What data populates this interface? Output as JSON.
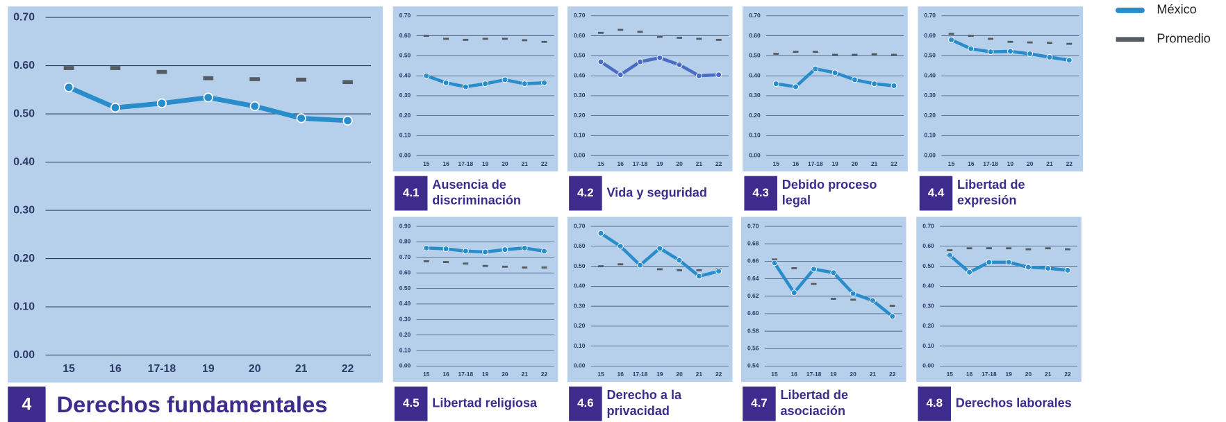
{
  "chart_data": [
    {
      "type": "line",
      "number": "4",
      "title": [
        "Derechos fundamentales"
      ],
      "categories": [
        "15",
        "16",
        "17-18",
        "19",
        "20",
        "21",
        "22"
      ],
      "ylim": [
        0,
        0.7
      ],
      "yticks": [
        {
          "value": 0,
          "label": "0.00"
        },
        {
          "value": 0.1,
          "label": "0.10"
        },
        {
          "value": 0.2,
          "label": "0.20"
        },
        {
          "value": 0.3,
          "label": "0.30"
        },
        {
          "value": 0.4,
          "label": "0.40"
        },
        {
          "value": 0.5,
          "label": "0.50"
        },
        {
          "value": 0.6,
          "label": "0.60"
        },
        {
          "value": 0.7,
          "label": "0.70"
        }
      ],
      "grid": true,
      "series": [
        {
          "name": "México",
          "color": "#2a8dcb",
          "style": "line",
          "values": [
            0.555,
            0.513,
            0.522,
            0.534,
            0.516,
            0.491,
            0.486
          ]
        },
        {
          "name": "Promedio",
          "color": "#555b63",
          "style": "dash",
          "values": [
            0.595,
            0.595,
            0.587,
            0.574,
            0.572,
            0.571,
            0.566
          ]
        }
      ]
    },
    {
      "type": "line",
      "number": "4.1",
      "title": [
        "Ausencia de",
        "discriminación"
      ],
      "categories": [
        "15",
        "16",
        "17-18",
        "19",
        "20",
        "21",
        "22"
      ],
      "ylim": [
        0,
        0.7
      ],
      "yticks": [
        {
          "value": 0,
          "label": "0.00"
        },
        {
          "value": 0.1,
          "label": "0.10"
        },
        {
          "value": 0.2,
          "label": "0.20"
        },
        {
          "value": 0.3,
          "label": "0.30"
        },
        {
          "value": 0.4,
          "label": "0.40"
        },
        {
          "value": 0.5,
          "label": "0.50"
        },
        {
          "value": 0.6,
          "label": "0.60"
        },
        {
          "value": 0.7,
          "label": "0.70"
        }
      ],
      "grid": true,
      "series": [
        {
          "name": "México",
          "color": "#2a8dcb",
          "style": "line",
          "values": [
            0.4,
            0.365,
            0.345,
            0.36,
            0.38,
            0.36,
            0.365
          ]
        },
        {
          "name": "Promedio",
          "color": "#555b63",
          "style": "dash",
          "values": [
            0.6,
            0.585,
            0.58,
            0.585,
            0.585,
            0.578,
            0.57
          ]
        }
      ]
    },
    {
      "type": "line",
      "number": "4.2",
      "title": [
        "Vida y seguridad"
      ],
      "categories": [
        "15",
        "16",
        "17-18",
        "19",
        "20",
        "21",
        "22"
      ],
      "ylim": [
        0,
        0.7
      ],
      "yticks": [
        {
          "value": 0,
          "label": "0.00"
        },
        {
          "value": 0.1,
          "label": "0.10"
        },
        {
          "value": 0.2,
          "label": "0.20"
        },
        {
          "value": 0.3,
          "label": "0.30"
        },
        {
          "value": 0.4,
          "label": "0.40"
        },
        {
          "value": 0.5,
          "label": "0.50"
        },
        {
          "value": 0.6,
          "label": "0.60"
        },
        {
          "value": 0.7,
          "label": "0.70"
        }
      ],
      "grid": true,
      "series": [
        {
          "name": "México",
          "color": "#4a6cc2",
          "style": "line",
          "values": [
            0.47,
            0.405,
            0.47,
            0.49,
            0.455,
            0.4,
            0.405
          ]
        },
        {
          "name": "Promedio",
          "color": "#555b63",
          "style": "dash",
          "values": [
            0.615,
            0.63,
            0.62,
            0.595,
            0.59,
            0.585,
            0.58
          ]
        }
      ]
    },
    {
      "type": "line",
      "number": "4.3",
      "title": [
        "Debido proceso",
        "legal"
      ],
      "categories": [
        "15",
        "16",
        "17-18",
        "19",
        "20",
        "21",
        "22"
      ],
      "ylim": [
        0,
        0.7
      ],
      "yticks": [
        {
          "value": 0,
          "label": "0.00"
        },
        {
          "value": 0.1,
          "label": "0.10"
        },
        {
          "value": 0.2,
          "label": "0.20"
        },
        {
          "value": 0.3,
          "label": "0.30"
        },
        {
          "value": 0.4,
          "label": "0.40"
        },
        {
          "value": 0.5,
          "label": "0.50"
        },
        {
          "value": 0.6,
          "label": "0.60"
        },
        {
          "value": 0.7,
          "label": "0.70"
        }
      ],
      "grid": true,
      "series": [
        {
          "name": "México",
          "color": "#2a8dcb",
          "style": "line",
          "values": [
            0.36,
            0.345,
            0.435,
            0.415,
            0.38,
            0.36,
            0.35
          ]
        },
        {
          "name": "Promedio",
          "color": "#555b63",
          "style": "dash",
          "values": [
            0.51,
            0.52,
            0.52,
            0.505,
            0.505,
            0.508,
            0.505
          ]
        }
      ]
    },
    {
      "type": "line",
      "number": "4.4",
      "title": [
        "Libertad de",
        "expresión"
      ],
      "categories": [
        "15",
        "16",
        "17-18",
        "19",
        "20",
        "21",
        "22"
      ],
      "ylim": [
        0,
        0.7
      ],
      "yticks": [
        {
          "value": 0,
          "label": "0.00"
        },
        {
          "value": 0.1,
          "label": "0.10"
        },
        {
          "value": 0.2,
          "label": "0.20"
        },
        {
          "value": 0.3,
          "label": "0.30"
        },
        {
          "value": 0.4,
          "label": "0.40"
        },
        {
          "value": 0.5,
          "label": "0.50"
        },
        {
          "value": 0.6,
          "label": "0.60"
        },
        {
          "value": 0.7,
          "label": "0.70"
        }
      ],
      "grid": true,
      "series": [
        {
          "name": "México",
          "color": "#2a8dcb",
          "style": "line",
          "values": [
            0.58,
            0.535,
            0.52,
            0.522,
            0.51,
            0.493,
            0.478
          ]
        },
        {
          "name": "Promedio",
          "color": "#555b63",
          "style": "dash",
          "values": [
            0.61,
            0.6,
            0.585,
            0.57,
            0.567,
            0.565,
            0.56
          ]
        }
      ]
    },
    {
      "type": "line",
      "number": "4.5",
      "title": [
        "Libertad religiosa"
      ],
      "categories": [
        "15",
        "16",
        "17-18",
        "19",
        "20",
        "21",
        "22"
      ],
      "ylim": [
        0,
        0.9
      ],
      "yticks": [
        {
          "value": 0,
          "label": "0.00"
        },
        {
          "value": 0.1,
          "label": "0.10"
        },
        {
          "value": 0.2,
          "label": "0.20"
        },
        {
          "value": 0.3,
          "label": "0.30"
        },
        {
          "value": 0.4,
          "label": "0.40"
        },
        {
          "value": 0.5,
          "label": "0.50"
        },
        {
          "value": 0.6,
          "label": "0.60"
        },
        {
          "value": 0.7,
          "label": "0.70"
        },
        {
          "value": 0.8,
          "label": "0.80"
        },
        {
          "value": 0.9,
          "label": "0.90"
        }
      ],
      "grid": true,
      "series": [
        {
          "name": "México",
          "color": "#2a8dcb",
          "style": "line",
          "values": [
            0.76,
            0.755,
            0.74,
            0.735,
            0.75,
            0.76,
            0.74
          ]
        },
        {
          "name": "Promedio",
          "color": "#555b63",
          "style": "dash",
          "values": [
            0.675,
            0.67,
            0.66,
            0.645,
            0.64,
            0.635,
            0.635
          ]
        }
      ]
    },
    {
      "type": "line",
      "number": "4.6",
      "title": [
        "Derecho a la",
        "privacidad"
      ],
      "categories": [
        "15",
        "16",
        "17-18",
        "19",
        "20",
        "21",
        "22"
      ],
      "ylim": [
        0,
        0.7
      ],
      "yticks": [
        {
          "value": 0,
          "label": "0.00"
        },
        {
          "value": 0.1,
          "label": "0.10"
        },
        {
          "value": 0.2,
          "label": "0.20"
        },
        {
          "value": 0.3,
          "label": "0.30"
        },
        {
          "value": 0.4,
          "label": "0.40"
        },
        {
          "value": 0.5,
          "label": "0.50"
        },
        {
          "value": 0.6,
          "label": "0.60"
        },
        {
          "value": 0.7,
          "label": "0.70"
        }
      ],
      "grid": true,
      "series": [
        {
          "name": "México",
          "color": "#2a8dcb",
          "style": "line",
          "values": [
            0.665,
            0.6,
            0.505,
            0.59,
            0.53,
            0.45,
            0.475
          ]
        },
        {
          "name": "Promedio",
          "color": "#555b63",
          "style": "dash",
          "values": [
            0.5,
            0.51,
            0.5,
            0.485,
            0.48,
            0.48,
            0.485
          ]
        }
      ]
    },
    {
      "type": "line",
      "number": "4.7",
      "title": [
        "Libertad de",
        "asociación"
      ],
      "categories": [
        "15",
        "16",
        "17-18",
        "19",
        "20",
        "21",
        "22"
      ],
      "ylim": [
        0.54,
        0.7
      ],
      "yticks": [
        {
          "value": 0.54,
          "label": "0.54"
        },
        {
          "value": 0.56,
          "label": "0.56"
        },
        {
          "value": 0.58,
          "label": "0.58"
        },
        {
          "value": 0.6,
          "label": "0.60"
        },
        {
          "value": 0.62,
          "label": "0.62"
        },
        {
          "value": 0.64,
          "label": "0.64"
        },
        {
          "value": 0.66,
          "label": "0.66"
        },
        {
          "value": 0.68,
          "label": "0.68"
        },
        {
          "value": 0.7,
          "label": "0.70"
        }
      ],
      "grid": true,
      "series": [
        {
          "name": "México",
          "color": "#2a8dcb",
          "style": "line",
          "values": [
            0.658,
            0.624,
            0.651,
            0.647,
            0.623,
            0.615,
            0.597
          ]
        },
        {
          "name": "Promedio",
          "color": "#555b63",
          "style": "dash",
          "values": [
            0.662,
            0.652,
            0.634,
            0.617,
            0.616,
            0.616,
            0.609
          ]
        }
      ]
    },
    {
      "type": "line",
      "number": "4.8",
      "title": [
        "Derechos laborales"
      ],
      "categories": [
        "15",
        "16",
        "17-18",
        "19",
        "20",
        "21",
        "22"
      ],
      "ylim": [
        0,
        0.7
      ],
      "yticks": [
        {
          "value": 0,
          "label": "0.00"
        },
        {
          "value": 0.1,
          "label": "0.10"
        },
        {
          "value": 0.2,
          "label": "0.20"
        },
        {
          "value": 0.3,
          "label": "0.30"
        },
        {
          "value": 0.4,
          "label": "0.40"
        },
        {
          "value": 0.5,
          "label": "0.50"
        },
        {
          "value": 0.6,
          "label": "0.60"
        },
        {
          "value": 0.7,
          "label": "0.70"
        }
      ],
      "grid": true,
      "series": [
        {
          "name": "México",
          "color": "#2a8dcb",
          "style": "line",
          "values": [
            0.555,
            0.47,
            0.52,
            0.52,
            0.495,
            0.49,
            0.48
          ]
        },
        {
          "name": "Promedio",
          "color": "#555b63",
          "style": "dash",
          "values": [
            0.58,
            0.59,
            0.59,
            0.59,
            0.585,
            0.59,
            0.585
          ]
        }
      ]
    }
  ]
}
